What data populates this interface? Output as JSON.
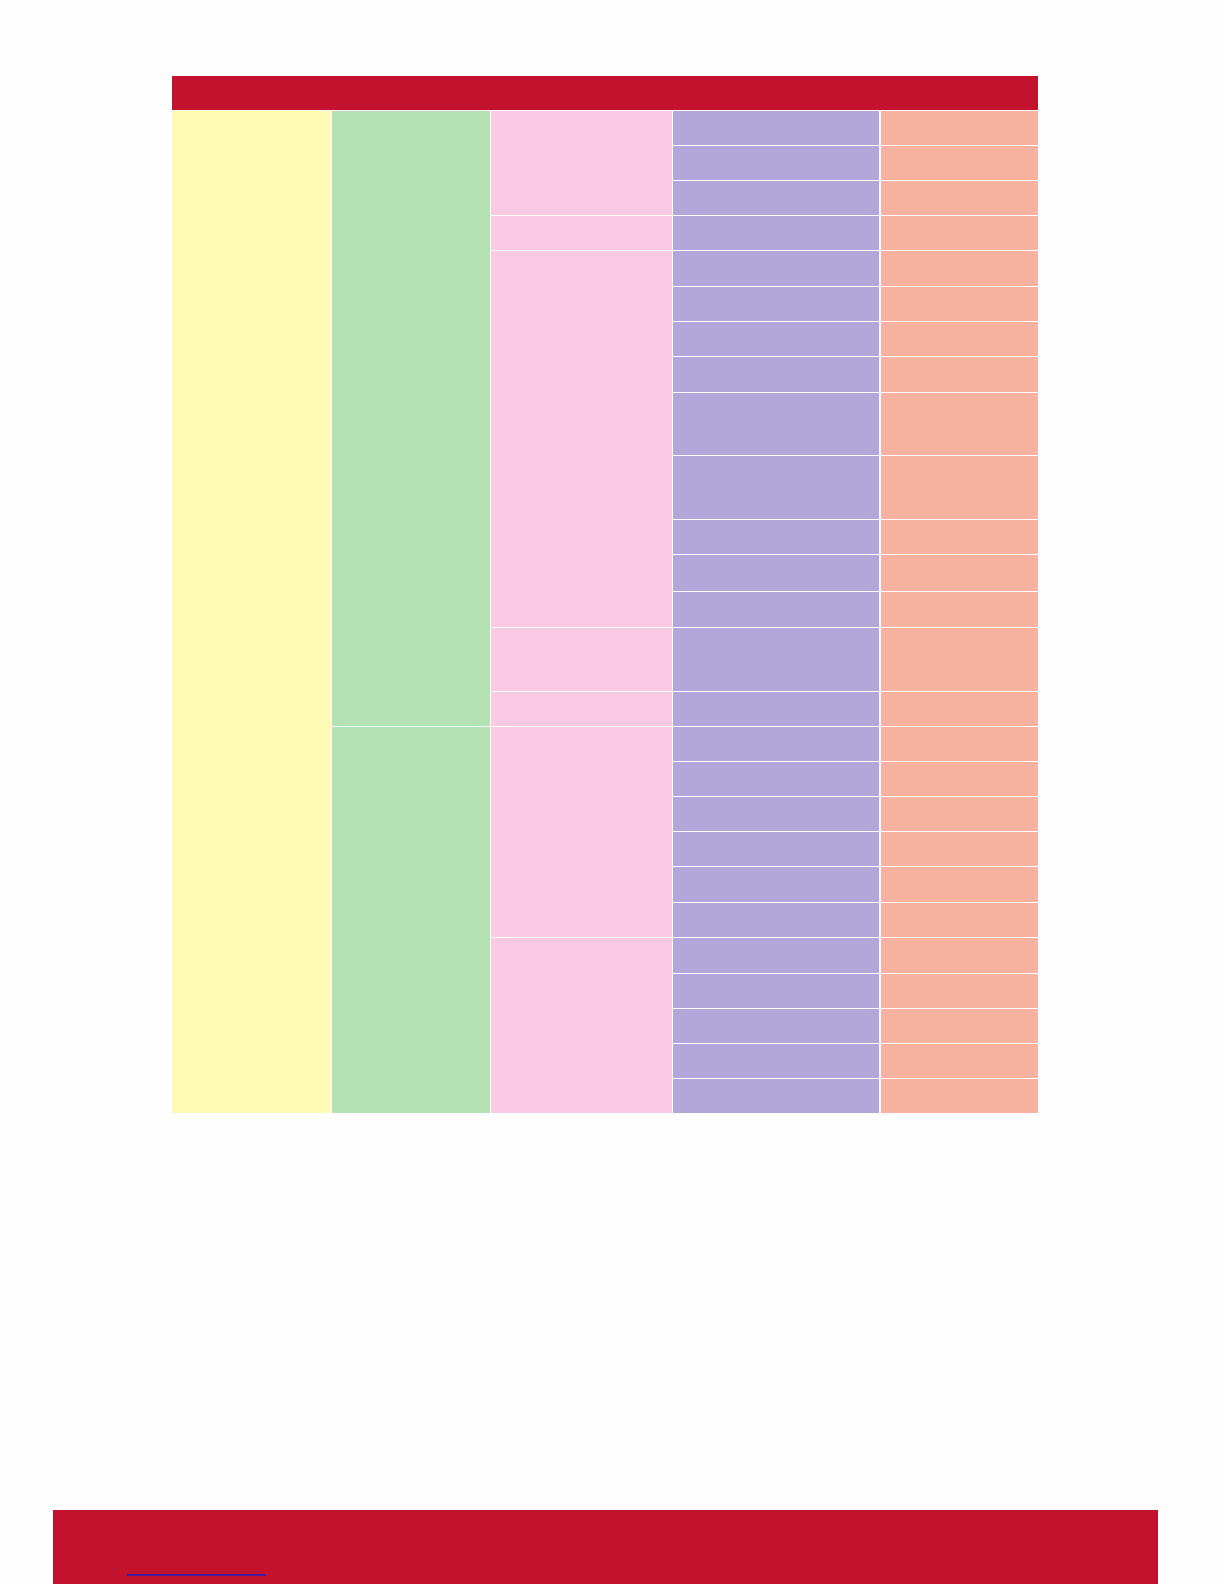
{
  "colors": {
    "header": "#c3122e",
    "footer": "#c3122e",
    "link": "#4a1a9a",
    "level1": "#fef9b4",
    "level2": "#b4e2b4",
    "level3": "#facae4",
    "level4": "#b3a7da",
    "level5": "#f8b2a0"
  }
}
